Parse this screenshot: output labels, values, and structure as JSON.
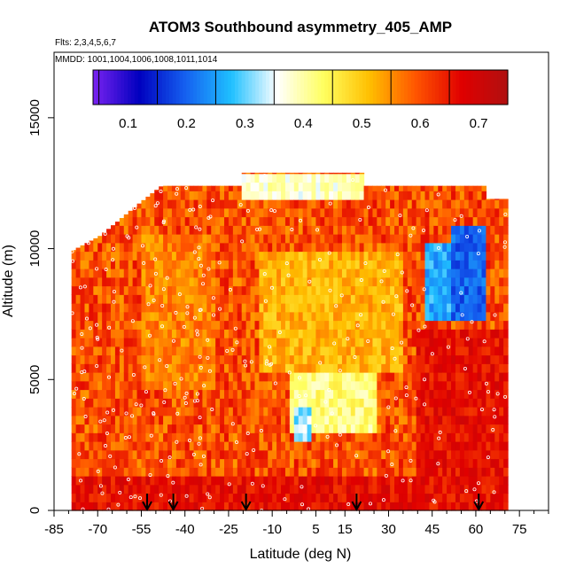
{
  "chart_data": {
    "type": "heatmap",
    "title": "ATOM3 Southbound asymmetry_405_AMP",
    "flights_label": "Flts: 2,3,4,5,6,7",
    "mmdd_label": "MMDD: 1001,1004,1006,1008,1011,1014",
    "xlabel": "Latitude (deg N)",
    "ylabel": "Altitude (m)",
    "xlim": [
      -85,
      85
    ],
    "ylim": [
      0,
      17500
    ],
    "x_ticks": [
      -85,
      -70,
      -55,
      -40,
      -25,
      -10,
      5,
      15,
      30,
      45,
      60,
      75
    ],
    "x_tick_labels": [
      "-85",
      "-70",
      "-55",
      "-40",
      "-25",
      "-10",
      "5",
      "15",
      "30",
      "45",
      "60",
      "75"
    ],
    "y_ticks": [
      0,
      5000,
      10000,
      15000
    ],
    "y_tick_labels": [
      "0",
      "5000",
      "10000",
      "15000"
    ],
    "colorbar": {
      "range": [
        0.04,
        0.75
      ],
      "ticks": [
        0.1,
        0.2,
        0.3,
        0.4,
        0.5,
        0.6,
        0.7
      ],
      "tick_labels": [
        "0.1",
        "0.2",
        "0.3",
        "0.4",
        "0.5",
        "0.6",
        "0.7"
      ],
      "colors": [
        "#7a22f0",
        "#0000bf",
        "#1560f0",
        "#1fc0ff",
        "#ffffff",
        "#ffff60",
        "#ffbf00",
        "#ff5500",
        "#e00000",
        "#b01010"
      ]
    },
    "arrow_latitudes": [
      -53,
      -44,
      -19,
      19,
      61
    ],
    "coverage": {
      "lat_min": -79,
      "lat_max": 71,
      "alt_max_by_lat": [
        [
          -79,
          9900
        ],
        [
          -69,
          10500
        ],
        [
          -56,
          11700
        ],
        [
          -48,
          12400
        ],
        [
          -20,
          12400
        ],
        [
          -20,
          12900
        ],
        [
          22,
          12900
        ],
        [
          22,
          12400
        ],
        [
          64,
          12400
        ],
        [
          64,
          11900
        ],
        [
          71,
          11900
        ],
        [
          71,
          0
        ]
      ],
      "background_value": 0.6
    },
    "features": [
      {
        "lat_min": -4,
        "lat_max": 26,
        "alt_min": 3000,
        "alt_max": 5200,
        "value": 0.42
      },
      {
        "lat_min": -3,
        "lat_max": 3,
        "alt_min": 2600,
        "alt_max": 4000,
        "value": 0.32
      },
      {
        "lat_min": -20,
        "lat_max": 22,
        "alt_min": 12000,
        "alt_max": 12900,
        "value": 0.38
      },
      {
        "lat_min": 43,
        "lat_max": 64,
        "alt_min": 7400,
        "alt_max": 10200,
        "value": 0.26
      },
      {
        "lat_min": 52,
        "lat_max": 64,
        "alt_min": 7400,
        "alt_max": 11000,
        "value": 0.2
      },
      {
        "lat_min": -15,
        "lat_max": 35,
        "alt_min": 5200,
        "alt_max": 10000,
        "value": 0.52
      },
      {
        "lat_min": -55,
        "lat_max": -30,
        "alt_min": 4500,
        "alt_max": 10500,
        "value": 0.56
      },
      {
        "lat_min": 40,
        "lat_max": 71,
        "alt_min": 0,
        "alt_max": 7000,
        "value": 0.66
      },
      {
        "lat_min": -79,
        "lat_max": 71,
        "alt_min": 0,
        "alt_max": 1200,
        "value": 0.66
      }
    ]
  }
}
